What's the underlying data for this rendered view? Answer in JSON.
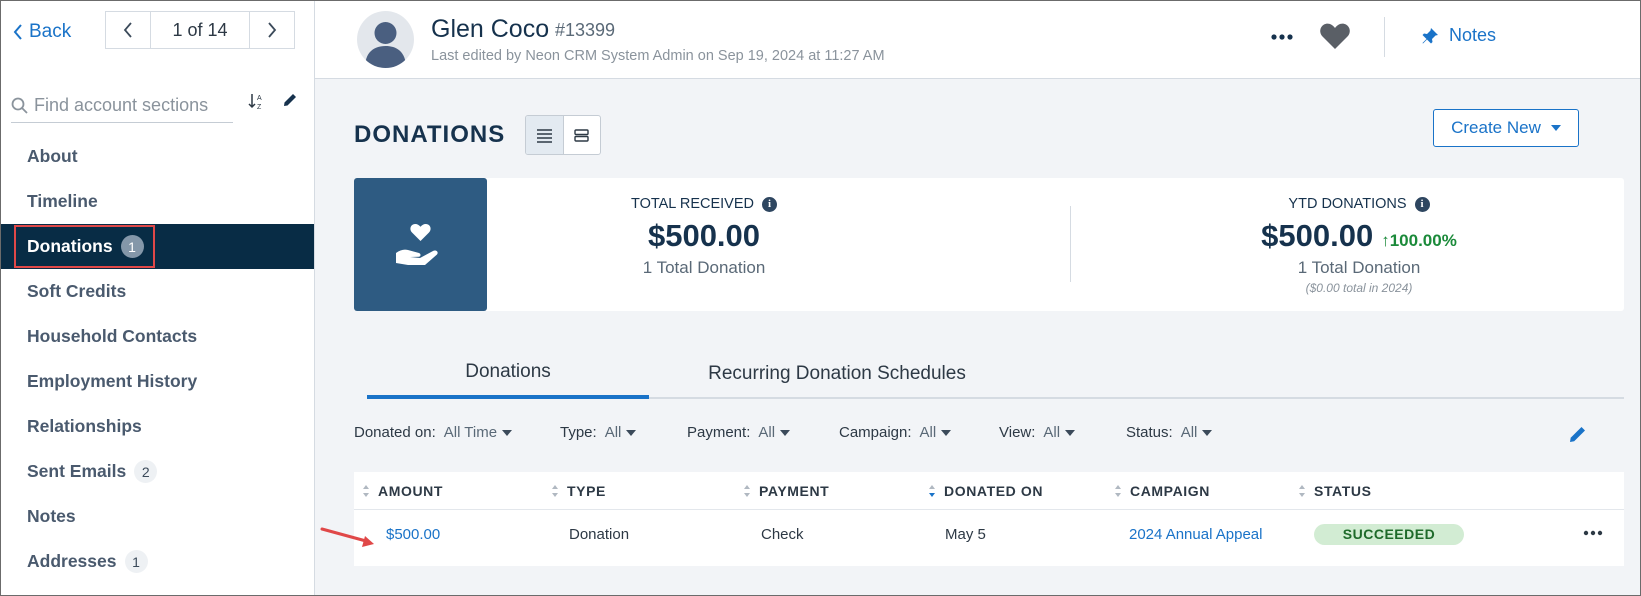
{
  "sidebar": {
    "back_label": "Back",
    "pager_label": "1 of 14",
    "search_placeholder": "Find account sections",
    "items": [
      {
        "label": "About",
        "badge": ""
      },
      {
        "label": "Timeline",
        "badge": ""
      },
      {
        "label": "Donations",
        "badge": "1"
      },
      {
        "label": "Soft Credits",
        "badge": ""
      },
      {
        "label": "Household Contacts",
        "badge": ""
      },
      {
        "label": "Employment History",
        "badge": ""
      },
      {
        "label": "Relationships",
        "badge": ""
      },
      {
        "label": "Sent Emails",
        "badge": "2"
      },
      {
        "label": "Notes",
        "badge": ""
      },
      {
        "label": "Addresses",
        "badge": "1"
      }
    ]
  },
  "header": {
    "name": "Glen Coco",
    "account_id": "#13399",
    "last_edited": "Last edited by Neon CRM System Admin on Sep 19, 2024 at 11:27 AM",
    "notes_label": "Notes"
  },
  "main": {
    "title": "DONATIONS",
    "create_new_label": "Create New",
    "summary": {
      "total_received": {
        "label": "TOTAL RECEIVED",
        "value": "$500.00",
        "sub": "1 Total Donation"
      },
      "ytd": {
        "label": "YTD DONATIONS",
        "value": "$500.00",
        "change": "100.00%",
        "sub": "1 Total Donation",
        "note": "($0.00 total in 2024)"
      }
    },
    "tabs": [
      {
        "label": "Donations",
        "active": true
      },
      {
        "label": "Recurring Donation Schedules",
        "active": false
      }
    ],
    "filters": [
      {
        "label": "Donated on:",
        "value": "All Time"
      },
      {
        "label": "Type:",
        "value": "All"
      },
      {
        "label": "Payment:",
        "value": "All"
      },
      {
        "label": "Campaign:",
        "value": "All"
      },
      {
        "label": "View:",
        "value": "All"
      },
      {
        "label": "Status:",
        "value": "All"
      }
    ],
    "table": {
      "columns": [
        "AMOUNT",
        "TYPE",
        "PAYMENT",
        "DONATED ON",
        "CAMPAIGN",
        "STATUS"
      ],
      "rows": [
        {
          "amount": "$500.00",
          "type": "Donation",
          "payment": "Check",
          "donated_on": "May 5",
          "campaign": "2024 Annual Appeal",
          "status": "SUCCEEDED"
        }
      ]
    }
  },
  "colors": {
    "accent": "#1a73c8",
    "sidebar_active": "#082c45",
    "icon_block": "#2e5b82",
    "success_text": "#1e6a2a",
    "success_bg": "#d2ecd3",
    "annotation_red": "#e04848"
  },
  "icons": [
    "chevron-left-icon",
    "chevron-right-icon",
    "search-icon",
    "sort-az-icon",
    "pencil-icon",
    "more-icon",
    "heart-icon",
    "pin-icon",
    "list-view-icon",
    "card-view-icon",
    "heart-hand-icon",
    "info-icon",
    "arrow-up-icon",
    "sort-icon"
  ]
}
